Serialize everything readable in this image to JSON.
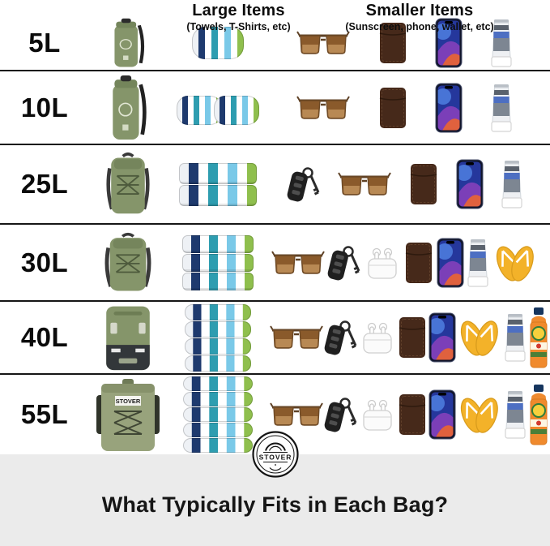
{
  "page": {
    "brand": "STOVER",
    "footer_title": "What Typically Fits in Each Bag?"
  },
  "column_headers": {
    "large": {
      "title": "Large Items",
      "subtitle": "(Towels, T-Shirts, etc)"
    },
    "smaller": {
      "title": "Smaller Items",
      "subtitle": "(Sunscreen, phone, wallet, etc)"
    }
  },
  "rows": [
    {
      "size": "5L",
      "bag": {
        "type": "dry-bag",
        "variant": "small"
      },
      "large_items": {
        "type": "rolled-towel",
        "count": 1
      },
      "smaller_items": [
        "sunglasses",
        "wallet",
        "phone",
        "sunscreen-tube"
      ]
    },
    {
      "size": "10L",
      "bag": {
        "type": "dry-bag",
        "variant": "tall"
      },
      "large_items": {
        "type": "rolled-towel",
        "count": 2
      },
      "smaller_items": [
        "sunglasses",
        "wallet",
        "phone",
        "sunscreen-tube"
      ]
    },
    {
      "size": "25L",
      "bag": {
        "type": "backpack",
        "variant": "slim"
      },
      "large_items": {
        "type": "folded-towel-stack",
        "count": 2
      },
      "smaller_items": [
        "car-key-fob",
        "sunglasses",
        "wallet",
        "phone",
        "sunscreen-tube"
      ]
    },
    {
      "size": "30L",
      "bag": {
        "type": "backpack",
        "variant": "regular"
      },
      "large_items": {
        "type": "folded-towel-stack",
        "count": 3
      },
      "smaller_items": [
        "sunglasses",
        "car-key-fob",
        "airpods",
        "wallet",
        "phone",
        "sunscreen-tube",
        "flip-flops"
      ]
    },
    {
      "size": "40L",
      "bag": {
        "type": "backpack-large"
      },
      "large_items": {
        "type": "rolled-towel-stack",
        "count": 4
      },
      "smaller_items": [
        "sunglasses",
        "car-key-fob",
        "airpods",
        "wallet",
        "phone",
        "flip-flops",
        "sunscreen-tube",
        "spray-sunscreen"
      ]
    },
    {
      "size": "55L",
      "bag": {
        "type": "rolltop-backpack",
        "label": "STOVER"
      },
      "large_items": {
        "type": "rolled-towel-stack",
        "count": 5
      },
      "smaller_items": [
        "sunglasses",
        "car-key-fob",
        "airpods",
        "wallet",
        "phone",
        "flip-flops",
        "sunscreen-tube",
        "spray-sunscreen"
      ]
    }
  ],
  "colors": {
    "bag_green": "#85956a",
    "bag_sage": "#98a37c",
    "towel_navy": "#1e3a6e",
    "towel_teal": "#2e9db0",
    "towel_sky": "#7ac9e8",
    "towel_lime": "#8fbf4d",
    "flipflop_yellow": "#f3b229",
    "spray_orange": "#f08a2d",
    "wallet_brown": "#46291a",
    "divider": "#161616",
    "footer_background": "#ebebeb"
  }
}
